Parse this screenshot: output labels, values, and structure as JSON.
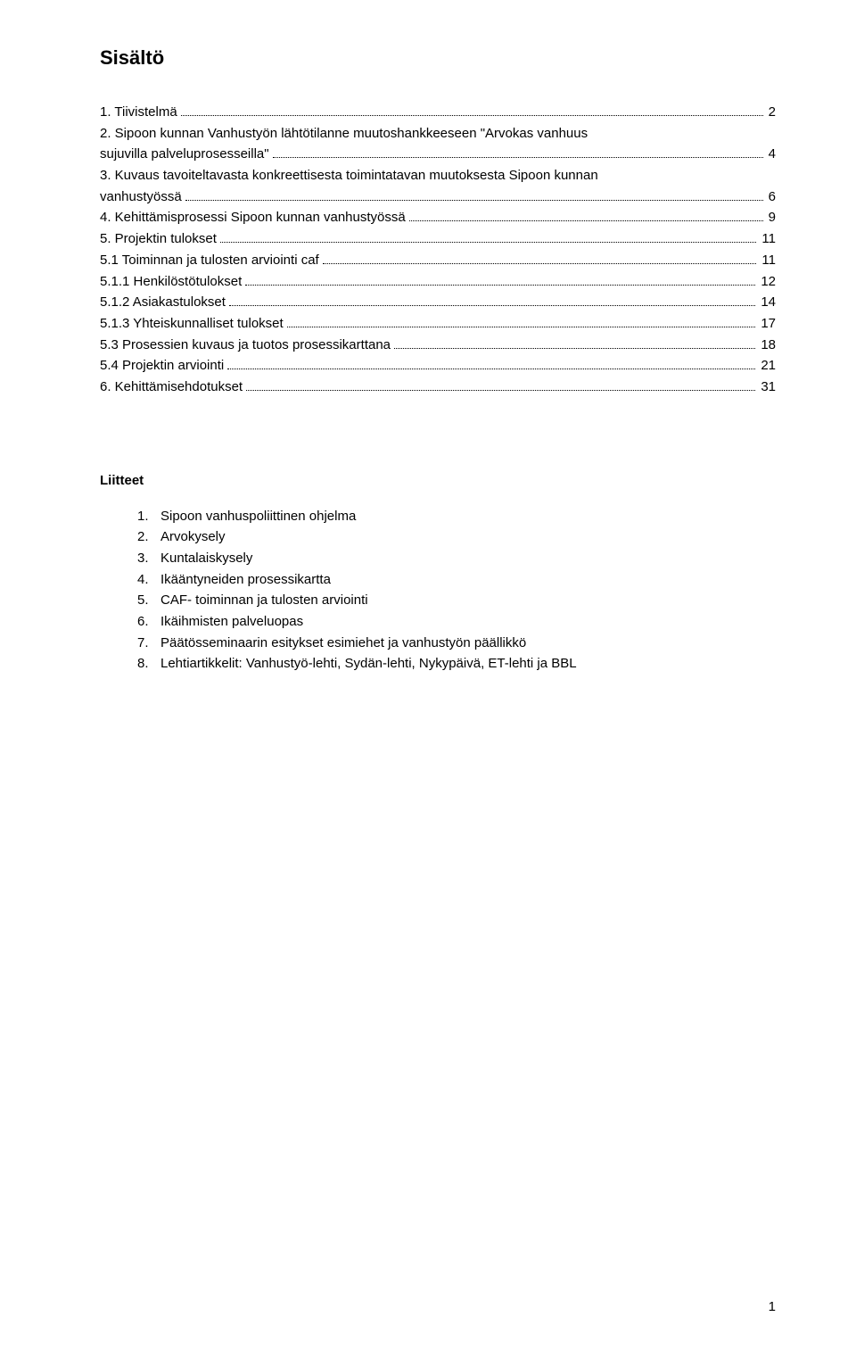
{
  "colors": {
    "background": "#ffffff",
    "text": "#000000"
  },
  "typography": {
    "body_fontsize_pt": 11,
    "body_fontfamily": "Arial",
    "title_fontsize_pt": 16,
    "title_fontweight": "bold"
  },
  "title": "Sisältö",
  "toc": [
    {
      "label": "1. Tiivistelmä",
      "page": "2",
      "indent": 0
    },
    {
      "label": "2. Sipoon kunnan Vanhustyön lähtötilanne muutoshankkeeseen \"Arvokas vanhuus",
      "page": "",
      "indent": 0
    },
    {
      "label": "sujuvilla palveluprosesseilla\"",
      "page": "4",
      "indent": 0
    },
    {
      "label": "3. Kuvaus tavoiteltavasta konkreettisesta toimintatavan muutoksesta Sipoon kunnan",
      "page": "",
      "indent": 0
    },
    {
      "label": "vanhustyössä",
      "page": "6",
      "indent": 0
    },
    {
      "label": "4. Kehittämisprosessi Sipoon kunnan vanhustyössä",
      "page": "9",
      "indent": 0
    },
    {
      "label": "5. Projektin tulokset",
      "page": "11",
      "indent": 0
    },
    {
      "label": "5.1 Toiminnan ja tulosten arviointi caf",
      "page": "11",
      "indent": 1
    },
    {
      "label": "5.1.1 Henkilöstötulokset",
      "page": "12",
      "indent": 2
    },
    {
      "label": "5.1.2 Asiakastulokset",
      "page": "14",
      "indent": 2
    },
    {
      "label": "5.1.3 Yhteiskunnalliset tulokset",
      "page": "17",
      "indent": 2
    },
    {
      "label": "5.3 Prosessien kuvaus ja tuotos prosessikarttana",
      "page": "18",
      "indent": 1
    },
    {
      "label": "5.4 Projektin arviointi",
      "page": "21",
      "indent": 1
    },
    {
      "label": "6. Kehittämisehdotukset",
      "page": "31",
      "indent": 0
    }
  ],
  "attachments_heading": "Liitteet",
  "attachments": [
    {
      "n": "1.",
      "text": "Sipoon vanhuspoliittinen ohjelma"
    },
    {
      "n": "2.",
      "text": "Arvokysely"
    },
    {
      "n": "3.",
      "text": "Kuntalaiskysely"
    },
    {
      "n": "4.",
      "text": "Ikääntyneiden prosessikartta"
    },
    {
      "n": "5.",
      "text": "CAF- toiminnan ja tulosten arviointi"
    },
    {
      "n": "6.",
      "text": "Ikäihmisten palveluopas"
    },
    {
      "n": "7.",
      "text": "Päätösseminaarin esitykset esimiehet ja vanhustyön päällikkö"
    },
    {
      "n": "8.",
      "text": "Lehtiartikkelit: Vanhustyö-lehti, Sydän-lehti, Nykypäivä, ET-lehti ja BBL"
    }
  ],
  "page_number": "1"
}
